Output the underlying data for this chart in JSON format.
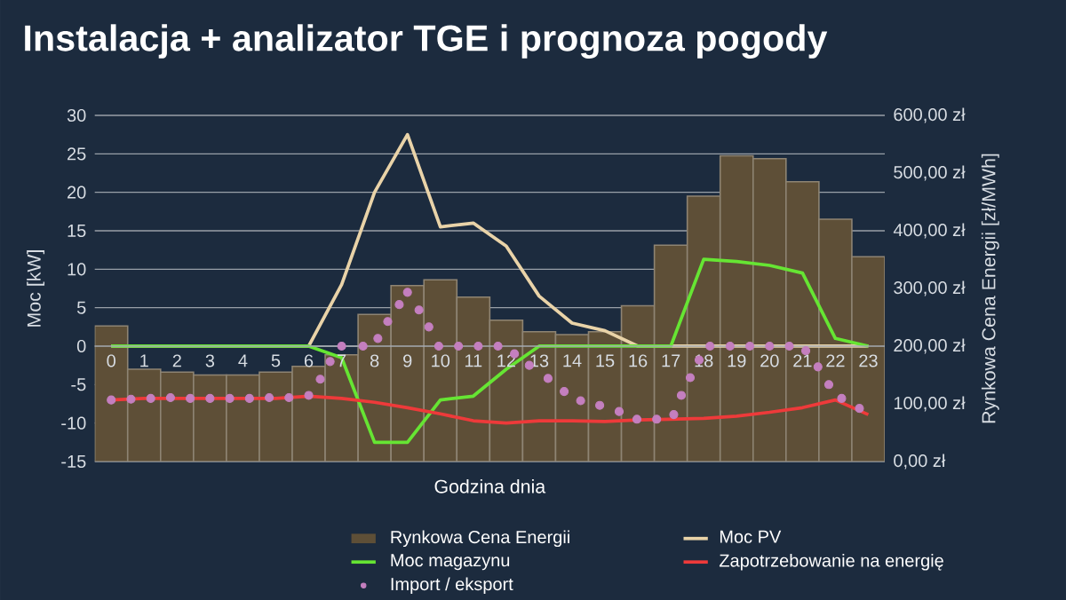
{
  "chart_data": {
    "type": "bar",
    "title": "Instalacja + analizator TGE i prognoza pogody",
    "xlabel": "Godzina dnia",
    "ylabel": "Moc [kW]",
    "y2label": "Rynkowa Cena Energii [zł/MWh]",
    "x": [
      0,
      1,
      2,
      3,
      4,
      5,
      6,
      7,
      8,
      9,
      10,
      11,
      12,
      13,
      14,
      15,
      16,
      17,
      18,
      19,
      20,
      21,
      22,
      23
    ],
    "xlim": [
      -0.5,
      23.5
    ],
    "xticks": [
      0,
      1,
      2,
      3,
      4,
      5,
      6,
      7,
      8,
      9,
      10,
      11,
      12,
      13,
      14,
      15,
      16,
      17,
      18,
      19,
      20,
      21,
      22,
      23
    ],
    "series": [
      {
        "name": "Rynkowa Cena Energii",
        "axis": "y2",
        "color": "#5e4f37",
        "values": [
          235,
          160,
          155,
          150,
          150,
          155,
          165,
          185,
          255,
          305,
          315,
          285,
          245,
          225,
          220,
          225,
          270,
          375,
          460,
          530,
          525,
          485,
          420,
          355
        ]
      },
      {
        "name": "Moc PV",
        "type": "line",
        "color": "#e9d3a8",
        "values": [
          0,
          0,
          0,
          0,
          0,
          0,
          0,
          8,
          20,
          27.5,
          15.5,
          16,
          13,
          6.5,
          3,
          2,
          0,
          0,
          0,
          0,
          0,
          0,
          0,
          0
        ]
      },
      {
        "name": "Moc magazynu",
        "type": "line",
        "color": "#66e533",
        "values": [
          0,
          0,
          0,
          0,
          0,
          0,
          0,
          -1.5,
          -12.5,
          -12.5,
          -7,
          -6.5,
          -3,
          0,
          0,
          0,
          0,
          0,
          11.3,
          11,
          10.5,
          9.5,
          1,
          0
        ]
      },
      {
        "name": "Zapotrzebowanie na energię",
        "type": "line",
        "color": "#ee3a3a",
        "values": [
          -7,
          -6.8,
          -6.8,
          -6.8,
          -6.8,
          -6.8,
          -6.5,
          -6.8,
          -7.3,
          -8,
          -8.8,
          -9.7,
          -10,
          -9.7,
          -9.7,
          -9.8,
          -9.6,
          -9.5,
          -9.4,
          -9.1,
          -8.6,
          -8,
          -7,
          -8.9
        ]
      },
      {
        "name": "Import / eksport",
        "type": "scatter",
        "marker": "circle",
        "color": "#c47fbf",
        "x": [
          0,
          0.6,
          1.2,
          1.8,
          2.4,
          3,
          3.6,
          4.2,
          4.8,
          5.4,
          6,
          6.35,
          6.65,
          7,
          7.65,
          8.1,
          8.4,
          8.75,
          9,
          9.35,
          9.65,
          9.95,
          10.55,
          11.15,
          11.75,
          12.25,
          12.7,
          13.27,
          13.76,
          14.26,
          14.84,
          15.43,
          15.97,
          16.57,
          17.09,
          17.32,
          17.59,
          17.86,
          18.19,
          18.8,
          19.4,
          20,
          20.6,
          21.1,
          21.47,
          21.8,
          22.19,
          22.73
        ],
        "values": [
          -7,
          -6.9,
          -6.8,
          -6.7,
          -6.8,
          -6.8,
          -6.8,
          -6.8,
          -6.7,
          -6.7,
          -6.4,
          -4.3,
          -2,
          0,
          0,
          1,
          3.2,
          5.4,
          7,
          4.7,
          2.5,
          0,
          0,
          0,
          0,
          -1,
          -2.5,
          -4.2,
          -5.9,
          -7.1,
          -7.7,
          -8.5,
          -9.5,
          -9.5,
          -8.9,
          -6.4,
          -4.1,
          -1.8,
          0,
          0,
          0,
          0,
          0,
          -0.6,
          -2.7,
          -5,
          -6.8,
          -8.1
        ]
      }
    ],
    "ylim": [
      -15,
      30
    ],
    "yticks": [
      -15,
      -10,
      -5,
      0,
      5,
      10,
      15,
      20,
      25,
      30
    ],
    "y2lim": [
      0,
      600
    ],
    "y2ticks": [
      {
        "value": 0,
        "label": "0,00 zł"
      },
      {
        "value": 100,
        "label": "100,00 zł"
      },
      {
        "value": 200,
        "label": "200,00 zł"
      },
      {
        "value": 300,
        "label": "300,00 zł"
      },
      {
        "value": 400,
        "label": "400,00 zł"
      },
      {
        "value": 500,
        "label": "500,00 zł"
      },
      {
        "value": 600,
        "label": "600,00 zł"
      }
    ],
    "grid": "y",
    "legend": "bottom"
  }
}
